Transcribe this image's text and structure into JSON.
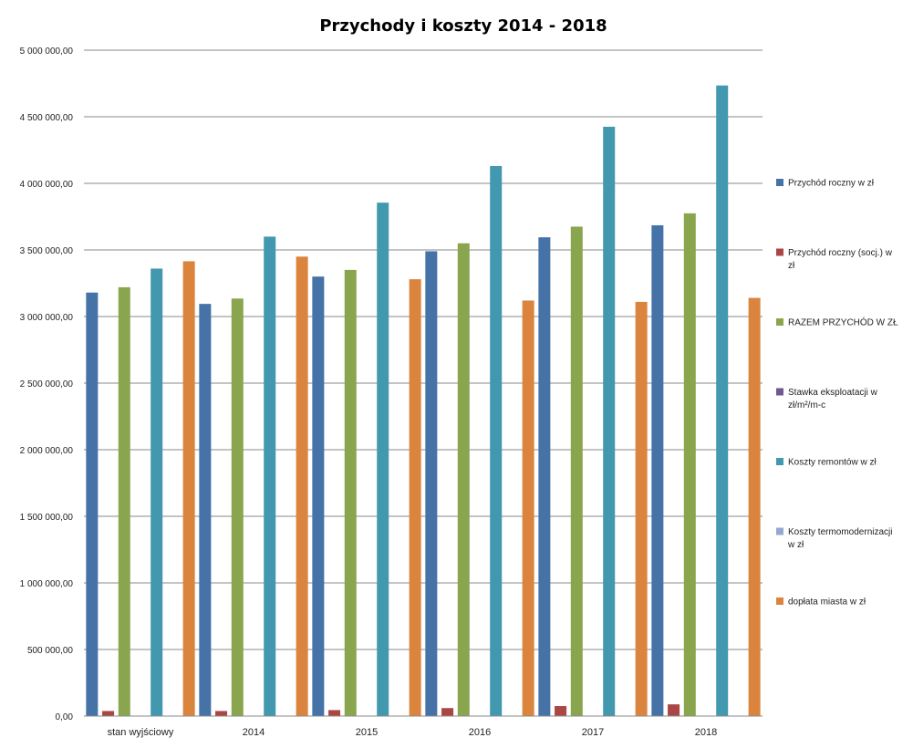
{
  "chart_data": {
    "type": "bar",
    "title": "Przychody i koszty 2014 - 2018",
    "categories": [
      "stan wyjściowy",
      "2014",
      "2015",
      "2016",
      "2017",
      "2018"
    ],
    "ylim": [
      0,
      5000000
    ],
    "y_ticks": [
      0,
      500000,
      1000000,
      1500000,
      2000000,
      2500000,
      3000000,
      3500000,
      4000000,
      4500000,
      5000000
    ],
    "y_tick_labels": [
      "0,00",
      "500 000,00",
      "1 000 000,00",
      "1 500 000,00",
      "2 000 000,00",
      "2 500 000,00",
      "3 000 000,00",
      "3 500 000,00",
      "4 000 000,00",
      "4 500 000,00",
      "5 000 000,00"
    ],
    "grid": true,
    "legend_position": "right",
    "series": [
      {
        "name": "Przychód roczny w zł",
        "legend_lines": [
          "Przychód roczny w zł"
        ],
        "color": "#4572A7",
        "values": [
          3180000,
          3095000,
          3300000,
          3490000,
          3595000,
          3685000
        ]
      },
      {
        "name": "Przychód roczny (socj.) w zł",
        "legend_lines": [
          "Przychód roczny (socj.) w",
          "zł"
        ],
        "color": "#AA4643",
        "values": [
          38000,
          38000,
          45000,
          60000,
          75000,
          88000
        ]
      },
      {
        "name": "RAZEM PRZYCHÓD W ZŁ",
        "legend_lines": [
          "RAZEM PRZYCHÓD W ZŁ"
        ],
        "color": "#89A54E",
        "values": [
          3220000,
          3135000,
          3350000,
          3550000,
          3675000,
          3775000
        ]
      },
      {
        "name": "Stawka eksploatacji w zł/m²/m-c",
        "legend_lines": [
          "Stawka eksploatacji w",
          "zł/m²/m-c"
        ],
        "color": "#71588F",
        "values": [
          0,
          0,
          0,
          0,
          0,
          0
        ]
      },
      {
        "name": "Koszty remontów w zł",
        "legend_lines": [
          "Koszty remontów w zł"
        ],
        "color": "#4198AF",
        "values": [
          3360000,
          3600000,
          3855000,
          4130000,
          4425000,
          4735000
        ]
      },
      {
        "name": "Koszty termomodernizacji w zł",
        "legend_lines": [
          "Koszty termomodernizacji",
          "w zł"
        ],
        "color": "#93A9CF",
        "values": [
          0,
          0,
          0,
          0,
          0,
          0
        ]
      },
      {
        "name": "dopłata miasta w zł",
        "legend_lines": [
          "dopłata miasta w zł"
        ],
        "color": "#DB843D",
        "values": [
          3415000,
          3450000,
          3280000,
          3120000,
          3110000,
          3140000
        ]
      }
    ]
  }
}
